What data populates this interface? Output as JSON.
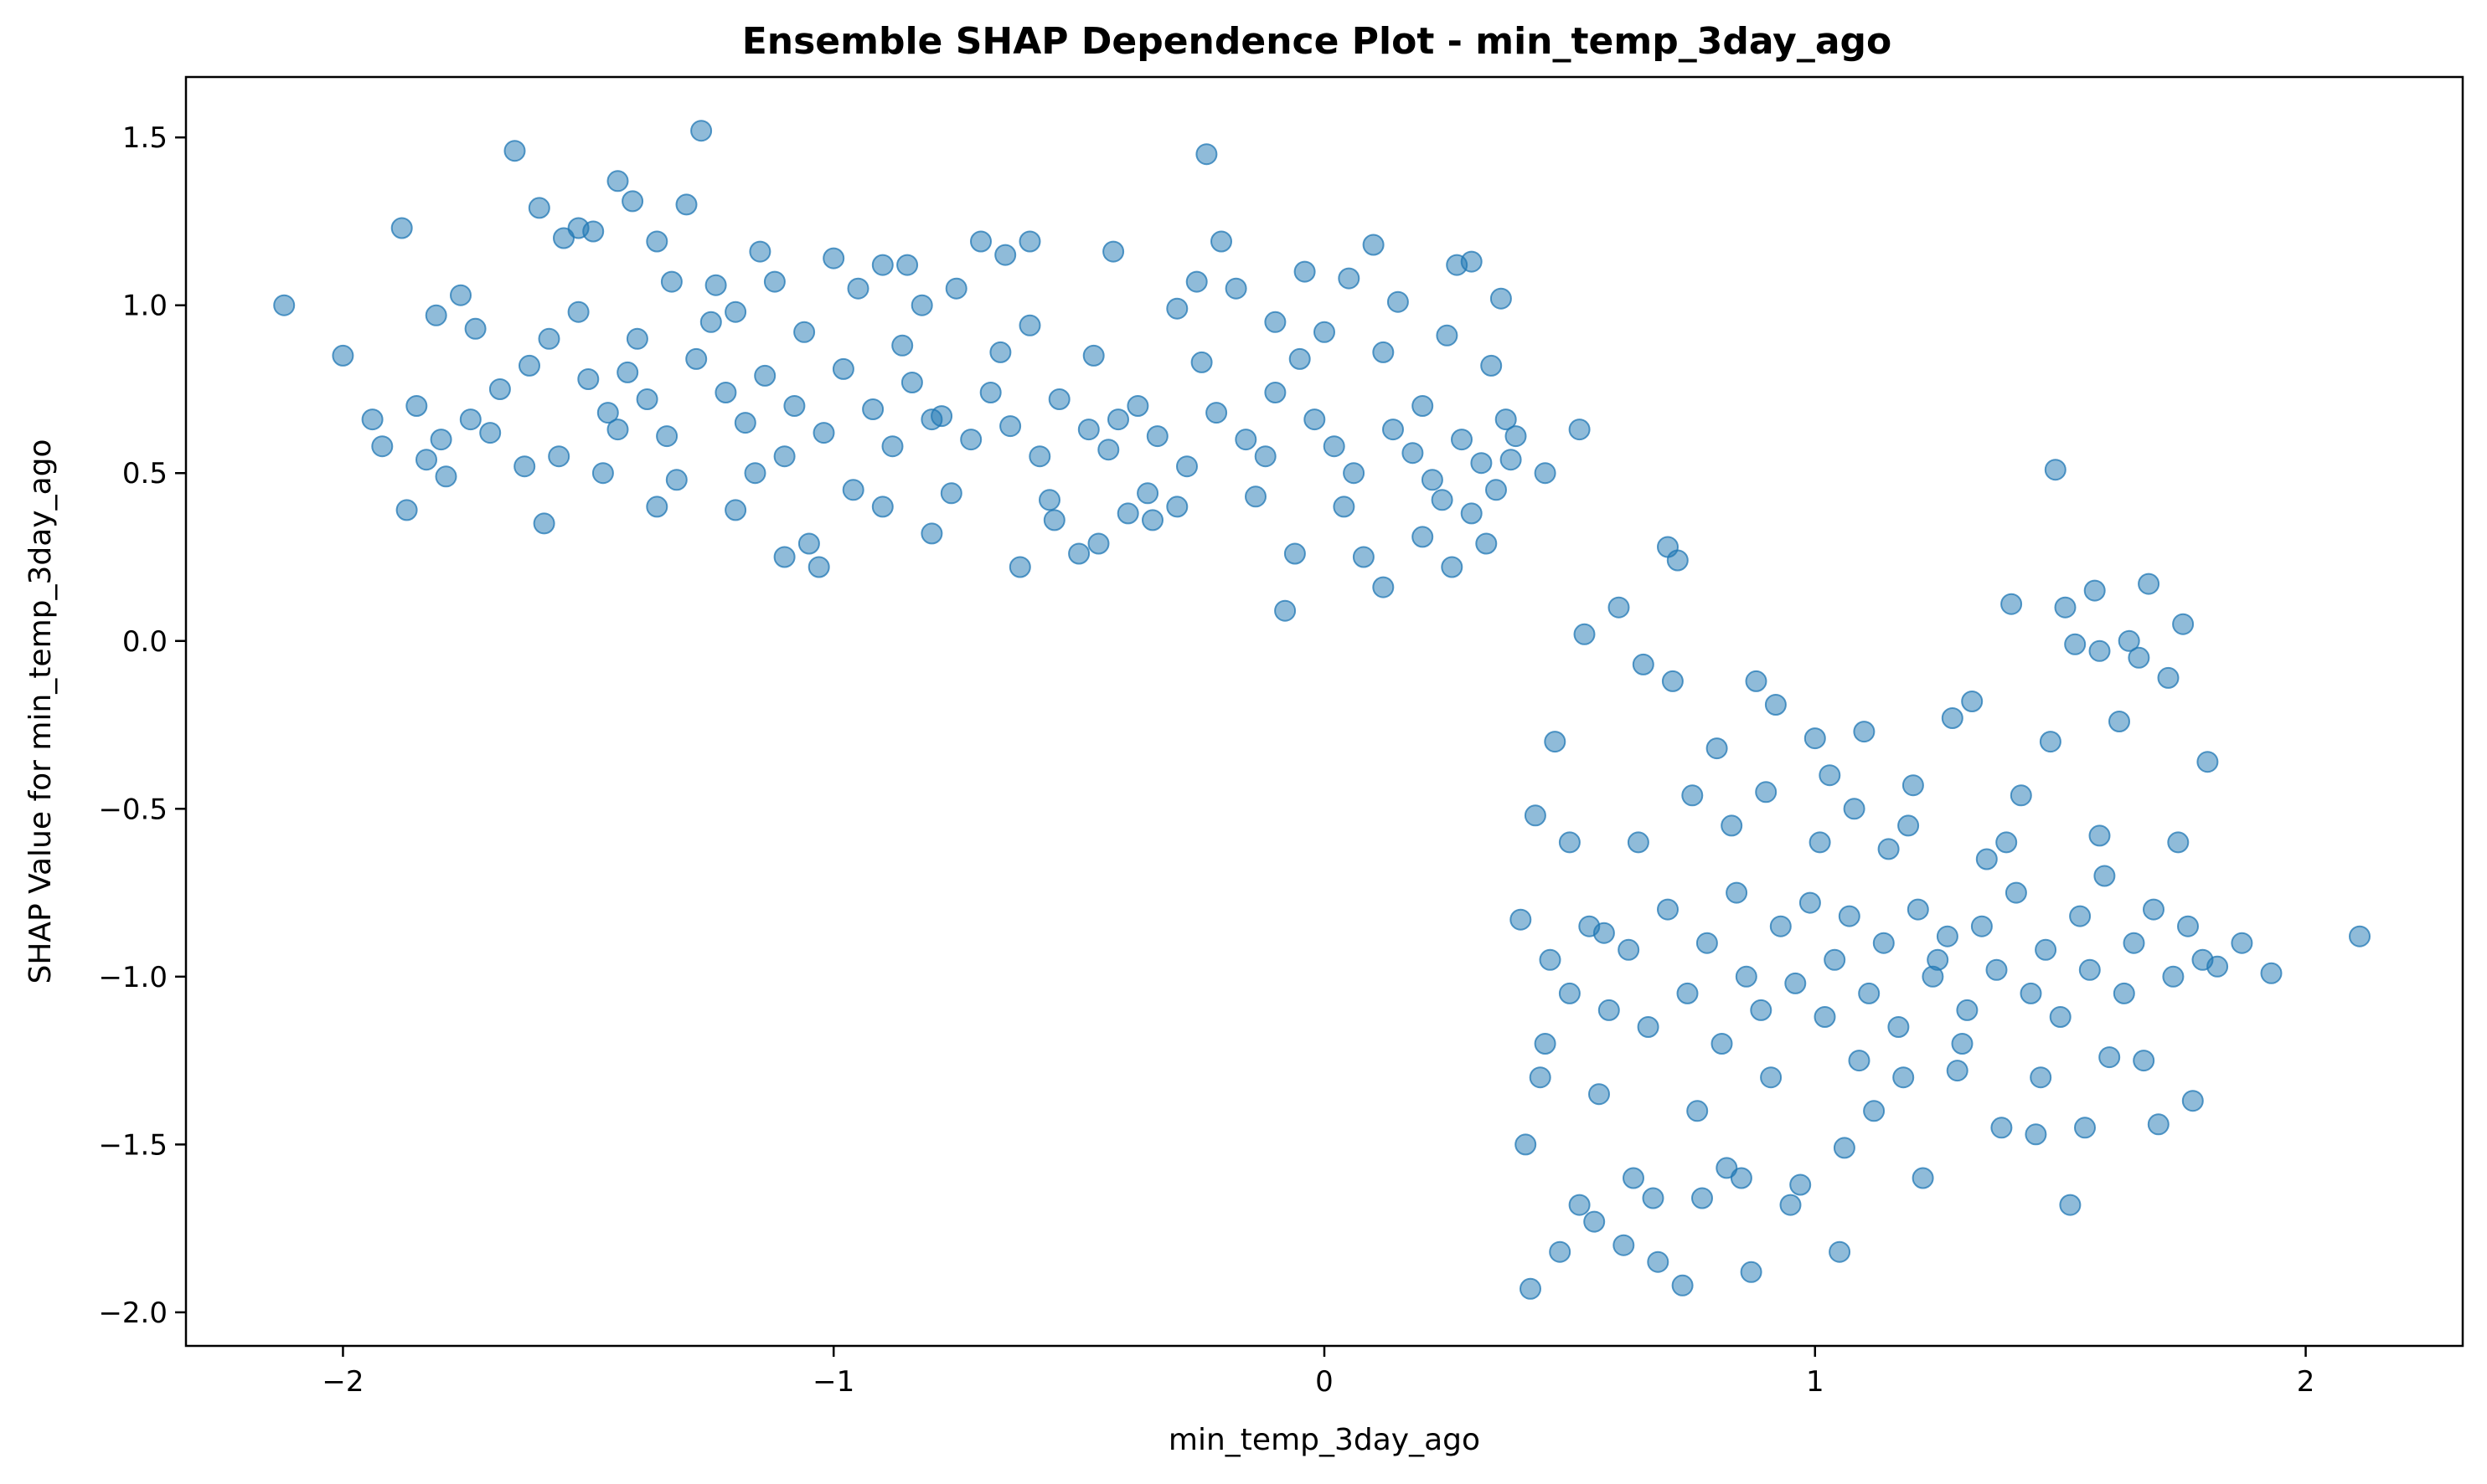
{
  "chart_data": {
    "type": "scatter",
    "title": "Ensemble SHAP Dependence Plot - min_temp_3day_ago",
    "xlabel": "min_temp_3day_ago",
    "ylabel": "SHAP Value for min_temp_3day_ago",
    "xlim": [
      -2.32,
      2.32
    ],
    "ylim": [
      -2.1,
      1.68
    ],
    "xticks": [
      -2,
      -1,
      0,
      1,
      2
    ],
    "xtick_labels": [
      "−2",
      "−1",
      "0",
      "1",
      "2"
    ],
    "yticks": [
      -2.0,
      -1.5,
      -1.0,
      -0.5,
      0.0,
      0.5,
      1.0,
      1.5
    ],
    "ytick_labels": [
      "−2.0",
      "−1.5",
      "−1.0",
      "−0.5",
      "0.0",
      "0.5",
      "1.0",
      "1.5"
    ],
    "grid": false,
    "color": "#1f77b4",
    "alpha": 0.5,
    "points": [
      [
        -2.12,
        1.0
      ],
      [
        -2.0,
        0.85
      ],
      [
        -1.94,
        0.66
      ],
      [
        -1.92,
        0.58
      ],
      [
        -1.88,
        1.23
      ],
      [
        -1.87,
        0.39
      ],
      [
        -1.85,
        0.7
      ],
      [
        -1.83,
        0.54
      ],
      [
        -1.81,
        0.97
      ],
      [
        -1.79,
        0.49
      ],
      [
        -1.76,
        1.03
      ],
      [
        -1.73,
        0.93
      ],
      [
        -1.7,
        0.62
      ],
      [
        -1.65,
        1.46
      ],
      [
        -1.63,
        0.52
      ],
      [
        -1.6,
        1.29
      ],
      [
        -1.59,
        0.35
      ],
      [
        -1.55,
        1.2
      ],
      [
        -1.52,
        1.23
      ],
      [
        -1.49,
        1.22
      ],
      [
        -1.44,
        1.37
      ],
      [
        -1.41,
        1.31
      ],
      [
        -1.36,
        1.19
      ],
      [
        -1.33,
        1.07
      ],
      [
        -1.3,
        1.3
      ],
      [
        -1.27,
        1.52
      ],
      [
        -1.24,
        1.06
      ],
      [
        -1.2,
        0.39
      ],
      [
        -1.15,
        1.16
      ],
      [
        -1.12,
        1.07
      ],
      [
        -1.1,
        0.25
      ],
      [
        -1.05,
        0.29
      ],
      [
        -1.03,
        0.22
      ],
      [
        -1.0,
        1.14
      ],
      [
        -0.95,
        1.05
      ],
      [
        -0.9,
        1.12
      ],
      [
        -0.85,
        1.12
      ],
      [
        -0.82,
        1.0
      ],
      [
        -0.8,
        0.32
      ],
      [
        -0.75,
        1.05
      ],
      [
        -0.7,
        1.19
      ],
      [
        -0.65,
        1.15
      ],
      [
        -0.62,
        0.22
      ],
      [
        -0.6,
        1.19
      ],
      [
        -0.55,
        0.36
      ],
      [
        -0.5,
        0.26
      ],
      [
        -0.46,
        0.29
      ],
      [
        -0.43,
        1.16
      ],
      [
        -0.4,
        0.38
      ],
      [
        -0.35,
        0.36
      ],
      [
        -0.3,
        0.99
      ],
      [
        -0.26,
        1.07
      ],
      [
        -0.24,
        1.45
      ],
      [
        -0.21,
        1.19
      ],
      [
        -0.18,
        1.05
      ],
      [
        -0.1,
        0.95
      ],
      [
        -0.08,
        0.09
      ],
      [
        -0.06,
        0.26
      ],
      [
        -0.04,
        1.1
      ],
      [
        0.05,
        1.08
      ],
      [
        0.08,
        0.25
      ],
      [
        0.1,
        1.18
      ],
      [
        0.12,
        0.16
      ],
      [
        0.15,
        1.01
      ],
      [
        0.2,
        0.31
      ],
      [
        0.25,
        0.91
      ],
      [
        0.26,
        0.22
      ],
      [
        0.27,
        1.12
      ],
      [
        0.3,
        1.13
      ],
      [
        0.33,
        0.29
      ],
      [
        0.36,
        1.02
      ],
      [
        0.39,
        0.61
      ],
      [
        0.45,
        0.5
      ],
      [
        0.52,
        0.63
      ],
      [
        -1.58,
        0.9
      ],
      [
        -1.5,
        0.78
      ],
      [
        -1.46,
        0.68
      ],
      [
        -1.42,
        0.8
      ],
      [
        -1.38,
        0.72
      ],
      [
        -1.34,
        0.61
      ],
      [
        -1.28,
        0.84
      ],
      [
        -1.22,
        0.74
      ],
      [
        -1.18,
        0.65
      ],
      [
        -1.14,
        0.79
      ],
      [
        -1.08,
        0.7
      ],
      [
        -1.02,
        0.62
      ],
      [
        -0.98,
        0.81
      ],
      [
        -0.92,
        0.69
      ],
      [
        -0.88,
        0.58
      ],
      [
        -0.84,
        0.77
      ],
      [
        -0.78,
        0.67
      ],
      [
        -0.72,
        0.6
      ],
      [
        -0.68,
        0.74
      ],
      [
        -0.64,
        0.64
      ],
      [
        -0.58,
        0.55
      ],
      [
        -0.54,
        0.72
      ],
      [
        -0.48,
        0.63
      ],
      [
        -0.44,
        0.57
      ],
      [
        -0.38,
        0.7
      ],
      [
        -0.34,
        0.61
      ],
      [
        -0.28,
        0.52
      ],
      [
        -0.22,
        0.68
      ],
      [
        -0.16,
        0.6
      ],
      [
        -0.12,
        0.55
      ],
      [
        -0.02,
        0.66
      ],
      [
        0.02,
        0.58
      ],
      [
        0.06,
        0.5
      ],
      [
        0.14,
        0.63
      ],
      [
        0.18,
        0.56
      ],
      [
        0.22,
        0.48
      ],
      [
        0.28,
        0.6
      ],
      [
        0.32,
        0.53
      ],
      [
        0.35,
        0.45
      ],
      [
        0.37,
        0.66
      ],
      [
        -1.68,
        0.75
      ],
      [
        -1.62,
        0.82
      ],
      [
        -1.56,
        0.55
      ],
      [
        -1.47,
        0.5
      ],
      [
        -1.4,
        0.9
      ],
      [
        -1.32,
        0.48
      ],
      [
        -1.25,
        0.95
      ],
      [
        -1.16,
        0.5
      ],
      [
        -1.06,
        0.92
      ],
      [
        -0.96,
        0.45
      ],
      [
        -0.86,
        0.88
      ],
      [
        -0.76,
        0.44
      ],
      [
        -0.66,
        0.86
      ],
      [
        -0.56,
        0.42
      ],
      [
        -0.47,
        0.85
      ],
      [
        -0.36,
        0.44
      ],
      [
        -0.25,
        0.83
      ],
      [
        -0.14,
        0.43
      ],
      [
        -0.05,
        0.84
      ],
      [
        0.04,
        0.4
      ],
      [
        0.12,
        0.86
      ],
      [
        0.24,
        0.42
      ],
      [
        0.34,
        0.82
      ],
      [
        -1.74,
        0.66
      ],
      [
        -1.52,
        0.98
      ],
      [
        -1.36,
        0.4
      ],
      [
        -1.2,
        0.98
      ],
      [
        -0.9,
        0.4
      ],
      [
        -0.6,
        0.94
      ],
      [
        -0.3,
        0.4
      ],
      [
        0.0,
        0.92
      ],
      [
        0.3,
        0.38
      ],
      [
        -1.8,
        0.6
      ],
      [
        -1.44,
        0.63
      ],
      [
        -1.1,
        0.55
      ],
      [
        -0.8,
        0.66
      ],
      [
        -0.42,
        0.66
      ],
      [
        -0.1,
        0.74
      ],
      [
        0.2,
        0.7
      ],
      [
        0.38,
        0.54
      ],
      [
        0.4,
        -0.83
      ],
      [
        0.41,
        -1.5
      ],
      [
        0.42,
        -1.93
      ],
      [
        0.43,
        -0.52
      ],
      [
        0.45,
        -1.2
      ],
      [
        0.47,
        -0.3
      ],
      [
        0.48,
        -1.82
      ],
      [
        0.5,
        -0.6
      ],
      [
        0.52,
        -1.68
      ],
      [
        0.53,
        0.02
      ],
      [
        0.55,
        -1.73
      ],
      [
        0.57,
        -0.87
      ],
      [
        0.6,
        0.1
      ],
      [
        0.61,
        -1.8
      ],
      [
        0.63,
        -1.6
      ],
      [
        0.65,
        -0.07
      ],
      [
        0.67,
        -1.66
      ],
      [
        0.68,
        -1.85
      ],
      [
        0.7,
        0.28
      ],
      [
        0.71,
        -0.12
      ],
      [
        0.72,
        0.24
      ],
      [
        0.73,
        -1.92
      ],
      [
        0.75,
        -0.46
      ],
      [
        0.77,
        -1.66
      ],
      [
        0.8,
        -0.32
      ],
      [
        0.82,
        -1.57
      ],
      [
        0.85,
        -1.6
      ],
      [
        0.87,
        -1.88
      ],
      [
        0.88,
        -0.12
      ],
      [
        0.9,
        -0.45
      ],
      [
        0.92,
        -0.19
      ],
      [
        0.95,
        -1.68
      ],
      [
        0.97,
        -1.62
      ],
      [
        1.0,
        -0.29
      ],
      [
        1.03,
        -0.4
      ],
      [
        1.05,
        -1.82
      ],
      [
        1.06,
        -1.51
      ],
      [
        1.08,
        -0.5
      ],
      [
        1.1,
        -0.27
      ],
      [
        1.12,
        -1.4
      ],
      [
        1.15,
        -0.62
      ],
      [
        1.18,
        -1.3
      ],
      [
        1.2,
        -0.43
      ],
      [
        1.22,
        -1.6
      ],
      [
        1.25,
        -0.95
      ],
      [
        1.28,
        -0.23
      ],
      [
        1.3,
        -1.2
      ],
      [
        1.32,
        -0.18
      ],
      [
        1.35,
        -0.65
      ],
      [
        1.38,
        -1.45
      ],
      [
        1.4,
        0.11
      ],
      [
        1.42,
        -0.46
      ],
      [
        1.45,
        -1.47
      ],
      [
        1.48,
        -0.3
      ],
      [
        1.49,
        0.51
      ],
      [
        1.51,
        0.1
      ],
      [
        1.52,
        -1.68
      ],
      [
        1.53,
        -0.01
      ],
      [
        1.55,
        -1.45
      ],
      [
        1.57,
        0.15
      ],
      [
        1.58,
        -0.03
      ],
      [
        1.6,
        -1.24
      ],
      [
        1.62,
        -0.24
      ],
      [
        1.64,
        0.0
      ],
      [
        1.66,
        -0.05
      ],
      [
        1.68,
        0.17
      ],
      [
        1.7,
        -1.44
      ],
      [
        1.72,
        -0.11
      ],
      [
        1.75,
        0.05
      ],
      [
        1.77,
        -1.37
      ],
      [
        1.8,
        -0.36
      ],
      [
        1.82,
        -0.97
      ],
      [
        1.87,
        -0.9
      ],
      [
        1.93,
        -0.99
      ],
      [
        2.11,
        -0.88
      ],
      [
        0.46,
        -0.95
      ],
      [
        0.5,
        -1.05
      ],
      [
        0.54,
        -0.85
      ],
      [
        0.58,
        -1.1
      ],
      [
        0.62,
        -0.92
      ],
      [
        0.66,
        -1.15
      ],
      [
        0.7,
        -0.8
      ],
      [
        0.74,
        -1.05
      ],
      [
        0.78,
        -0.9
      ],
      [
        0.81,
        -1.2
      ],
      [
        0.84,
        -0.75
      ],
      [
        0.86,
        -1.0
      ],
      [
        0.89,
        -1.1
      ],
      [
        0.93,
        -0.85
      ],
      [
        0.96,
        -1.02
      ],
      [
        0.99,
        -0.78
      ],
      [
        1.02,
        -1.12
      ],
      [
        1.04,
        -0.95
      ],
      [
        1.07,
        -0.82
      ],
      [
        1.11,
        -1.05
      ],
      [
        1.14,
        -0.9
      ],
      [
        1.17,
        -1.15
      ],
      [
        1.21,
        -0.8
      ],
      [
        1.24,
        -1.0
      ],
      [
        1.27,
        -0.88
      ],
      [
        1.31,
        -1.1
      ],
      [
        1.34,
        -0.85
      ],
      [
        1.37,
        -0.98
      ],
      [
        1.41,
        -0.75
      ],
      [
        1.44,
        -1.05
      ],
      [
        1.47,
        -0.92
      ],
      [
        1.5,
        -1.12
      ],
      [
        1.54,
        -0.82
      ],
      [
        1.56,
        -0.98
      ],
      [
        1.59,
        -0.7
      ],
      [
        1.63,
        -1.05
      ],
      [
        1.65,
        -0.9
      ],
      [
        1.69,
        -0.8
      ],
      [
        1.73,
        -1.0
      ],
      [
        1.76,
        -0.85
      ],
      [
        1.79,
        -0.95
      ],
      [
        0.44,
        -1.3
      ],
      [
        0.56,
        -1.35
      ],
      [
        0.64,
        -0.6
      ],
      [
        0.76,
        -1.4
      ],
      [
        0.83,
        -0.55
      ],
      [
        0.91,
        -1.3
      ],
      [
        1.01,
        -0.6
      ],
      [
        1.09,
        -1.25
      ],
      [
        1.19,
        -0.55
      ],
      [
        1.29,
        -1.28
      ],
      [
        1.39,
        -0.6
      ],
      [
        1.46,
        -1.3
      ],
      [
        1.58,
        -0.58
      ],
      [
        1.67,
        -1.25
      ],
      [
        1.74,
        -0.6
      ]
    ]
  }
}
